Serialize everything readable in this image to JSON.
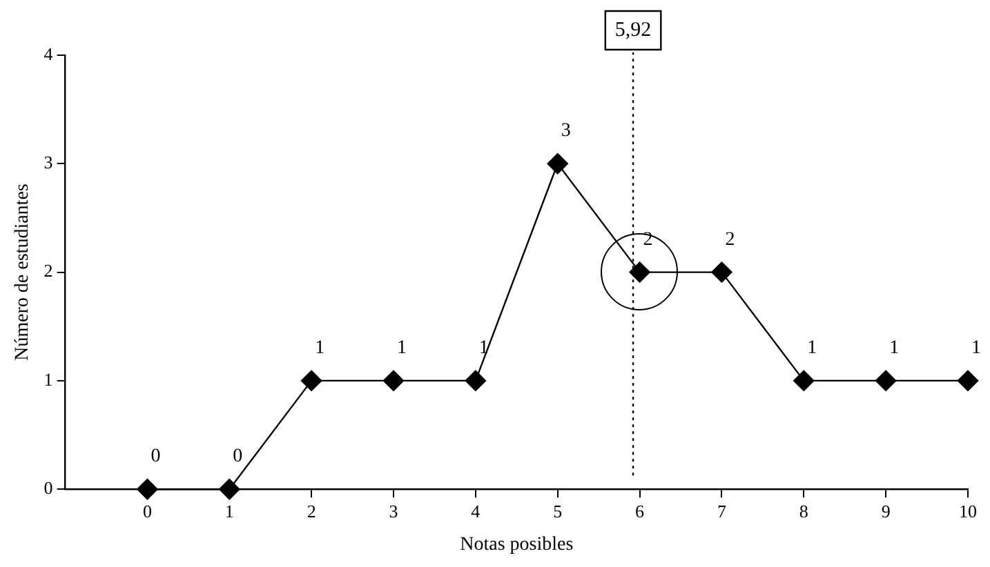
{
  "chart_data": {
    "type": "line",
    "xlabel": "Notas posibles",
    "ylabel": "Número de estudiantes",
    "x": [
      0,
      1,
      2,
      3,
      4,
      5,
      6,
      7,
      8,
      9,
      10
    ],
    "values": [
      0,
      0,
      1,
      1,
      1,
      3,
      2,
      2,
      1,
      1,
      1
    ],
    "color": "#000000",
    "marker": "diamond",
    "line_style": "solid",
    "data_labels": true,
    "grid": false,
    "legend": false,
    "xlim": [
      -1,
      10
    ],
    "xticks": [
      0,
      1,
      2,
      3,
      4,
      5,
      6,
      7,
      8,
      9,
      10
    ],
    "ylim": [
      0,
      4
    ],
    "yticks": [
      0,
      1,
      2,
      3,
      4
    ],
    "ref_lines": [
      {
        "axis": "x",
        "value": 5.92,
        "label": "5,92",
        "line_style": "dotted",
        "color": "#000000"
      }
    ]
  }
}
